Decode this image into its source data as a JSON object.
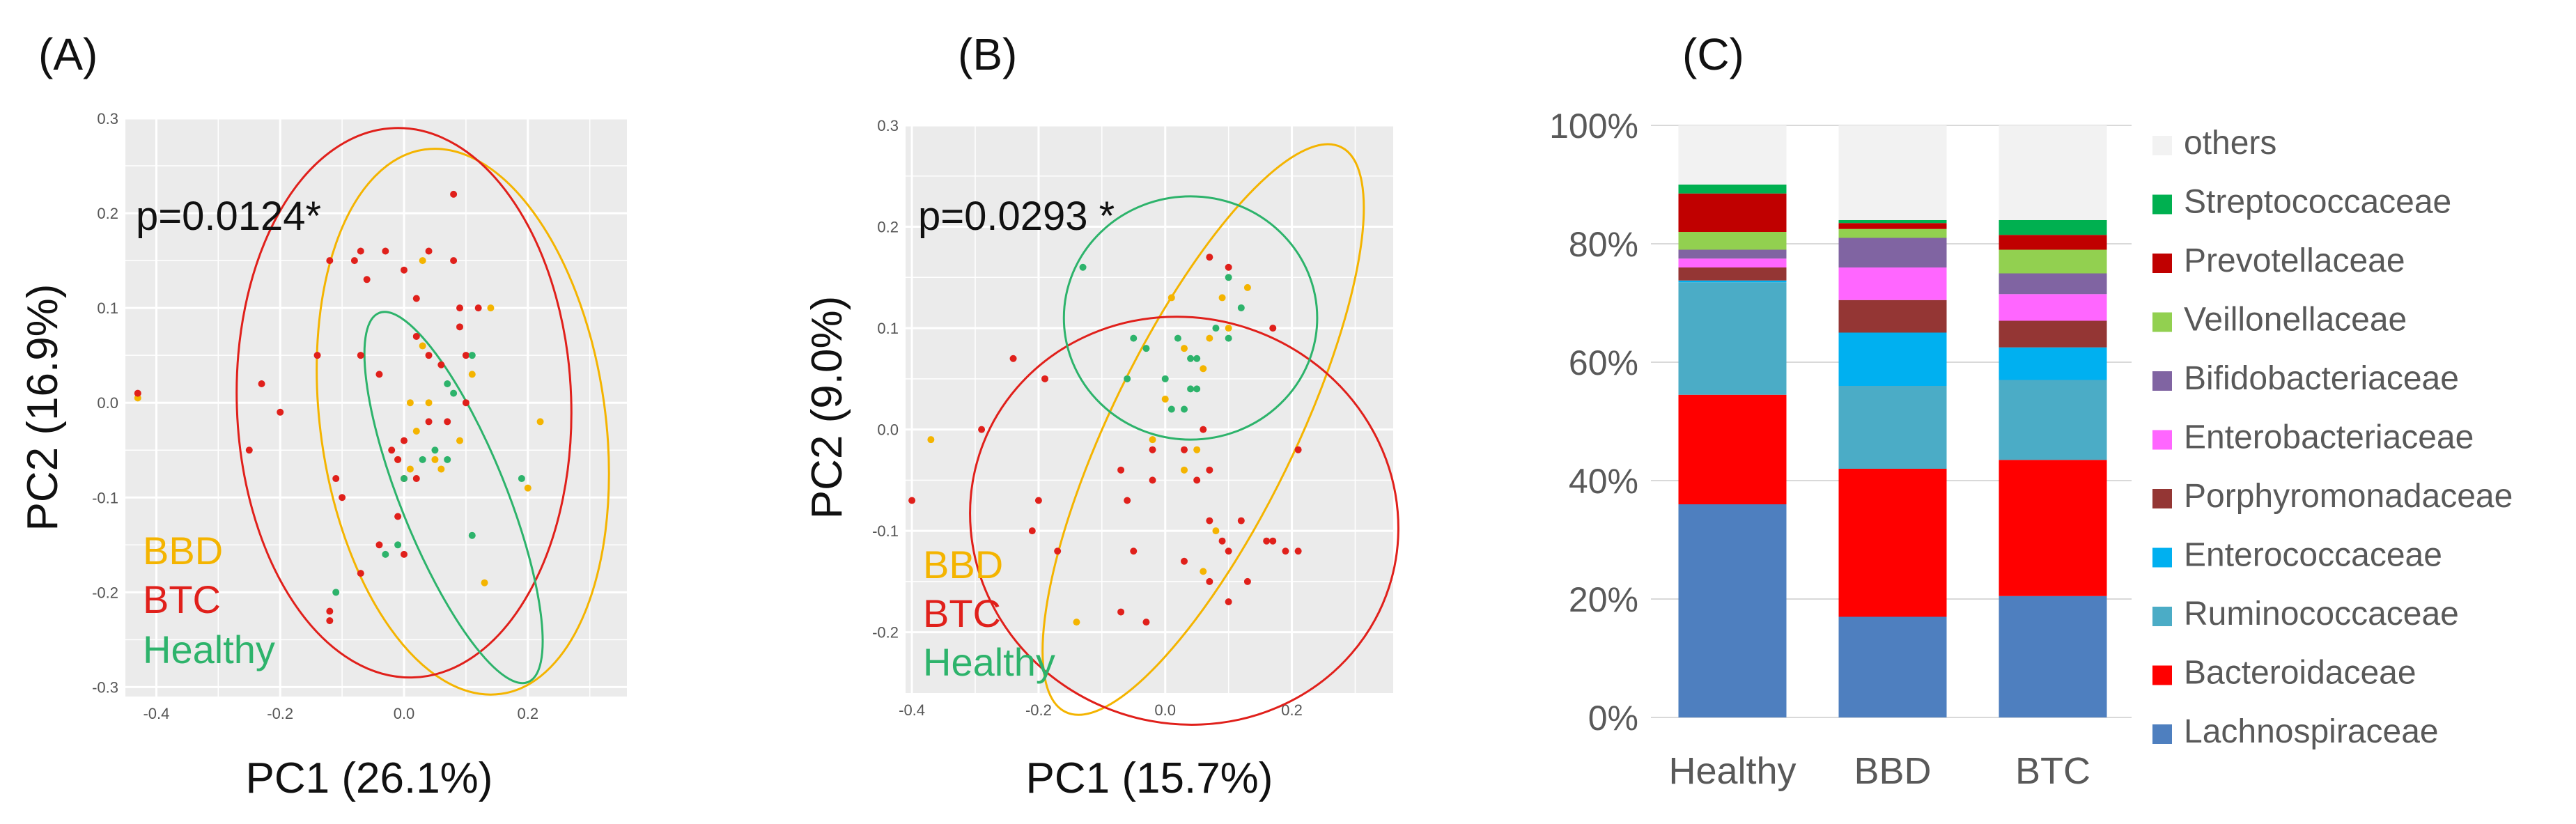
{
  "panels": {
    "a": {
      "label": "(A)",
      "pvalue": "p=0.0124*",
      "xlabel": "PC1 (26.1%)",
      "ylabel": "PC2 (16.9%)",
      "legend": [
        "BBD",
        "BTC",
        "Healthy"
      ]
    },
    "b": {
      "label": "(B)",
      "pvalue": "p=0.0293 *",
      "xlabel": "PC1 (15.7%)",
      "ylabel": "PC2 (9.0%)",
      "legend": [
        "BBD",
        "BTC",
        "Healthy"
      ]
    },
    "c": {
      "label": "(C)"
    }
  },
  "colors": {
    "BBD": "#F4B400",
    "BTC": "#E0201B",
    "Healthy": "#2DB36B",
    "panel_bg": "#EBEBEB",
    "grid": "#FFFFFF"
  },
  "chart_data": [
    {
      "type": "scatter",
      "panel": "A",
      "xlim": [
        -0.45,
        0.36
      ],
      "ylim": [
        -0.31,
        0.3
      ],
      "xticks": [
        "-0.4",
        "-0.2",
        "0.0",
        "0.2"
      ],
      "xtick_values": [
        -0.4,
        -0.2,
        0.0,
        0.2
      ],
      "yticks": [
        "-0.3",
        "-0.2",
        "-0.1",
        "0.0",
        "0.1",
        "0.2",
        "0.3"
      ],
      "ytick_values": [
        -0.3,
        -0.2,
        -0.1,
        0.0,
        0.1,
        0.2,
        0.3
      ],
      "series": [
        {
          "name": "BBD",
          "points": [
            [
              -0.43,
              0.005
            ],
            [
              0.03,
              0.15
            ],
            [
              0.11,
              0.03
            ],
            [
              0.03,
              0.06
            ],
            [
              0.14,
              0.1
            ],
            [
              0.02,
              -0.03
            ],
            [
              -0.01,
              -0.06
            ],
            [
              0.01,
              0.0
            ],
            [
              0.05,
              -0.06
            ],
            [
              0.06,
              -0.07
            ],
            [
              0.09,
              -0.04
            ],
            [
              0.2,
              -0.09
            ],
            [
              0.22,
              -0.02
            ],
            [
              0.13,
              -0.19
            ],
            [
              0.01,
              -0.07
            ],
            [
              0.04,
              0.0
            ]
          ]
        },
        {
          "name": "BTC",
          "points": [
            [
              -0.43,
              0.01
            ],
            [
              -0.25,
              -0.05
            ],
            [
              -0.23,
              0.02
            ],
            [
              -0.2,
              -0.01
            ],
            [
              -0.14,
              0.05
            ],
            [
              -0.12,
              0.15
            ],
            [
              -0.07,
              0.16
            ],
            [
              -0.08,
              0.15
            ],
            [
              -0.06,
              0.13
            ],
            [
              -0.03,
              0.16
            ],
            [
              0.0,
              0.14
            ],
            [
              0.02,
              0.11
            ],
            [
              0.04,
              0.16
            ],
            [
              0.08,
              0.22
            ],
            [
              0.08,
              0.15
            ],
            [
              0.1,
              0.05
            ],
            [
              0.1,
              0.0
            ],
            [
              0.09,
              0.08
            ],
            [
              0.09,
              0.1
            ],
            [
              0.12,
              0.1
            ],
            [
              -0.07,
              0.05
            ],
            [
              -0.04,
              0.03
            ],
            [
              -0.02,
              -0.05
            ],
            [
              -0.01,
              -0.06
            ],
            [
              0.0,
              -0.08
            ],
            [
              0.02,
              -0.08
            ],
            [
              0.04,
              -0.02
            ],
            [
              0.07,
              -0.02
            ],
            [
              0.04,
              0.05
            ],
            [
              0.06,
              0.04
            ],
            [
              -0.1,
              -0.1
            ],
            [
              -0.11,
              -0.08
            ],
            [
              -0.04,
              -0.15
            ],
            [
              -0.01,
              -0.12
            ],
            [
              -0.12,
              -0.23
            ],
            [
              -0.12,
              -0.22
            ],
            [
              0.0,
              -0.16
            ],
            [
              -0.07,
              -0.18
            ],
            [
              0.02,
              0.07
            ],
            [
              0.0,
              -0.04
            ]
          ]
        },
        {
          "name": "Healthy",
          "points": [
            [
              0.07,
              0.02
            ],
            [
              0.08,
              0.01
            ],
            [
              0.11,
              0.05
            ],
            [
              0.05,
              -0.05
            ],
            [
              0.07,
              -0.06
            ],
            [
              0.19,
              -0.08
            ],
            [
              0.11,
              -0.14
            ],
            [
              -0.01,
              -0.15
            ],
            [
              -0.03,
              -0.16
            ],
            [
              -0.11,
              -0.2
            ],
            [
              0.0,
              -0.08
            ],
            [
              0.03,
              -0.06
            ]
          ]
        }
      ],
      "ellipses": [
        {
          "group": "BBD",
          "center": [
            0.095,
            -0.02
          ],
          "radius": [
            0.23,
            0.29
          ],
          "rotation_deg": -8
        },
        {
          "group": "BTC",
          "center": [
            0.0,
            0.0
          ],
          "radius": [
            0.27,
            0.29
          ],
          "rotation_deg": -2
        },
        {
          "group": "Healthy",
          "center": [
            0.08,
            -0.1
          ],
          "radius": [
            0.085,
            0.21
          ],
          "rotation_deg": -22
        }
      ]
    },
    {
      "type": "scatter",
      "panel": "B",
      "xlim": [
        -0.41,
        0.36
      ],
      "ylim": [
        -0.26,
        0.3
      ],
      "xticks": [
        "-0.4",
        "-0.2",
        "0.0",
        "0.2"
      ],
      "xtick_values": [
        -0.4,
        -0.2,
        0.0,
        0.2
      ],
      "yticks": [
        "-0.2",
        "-0.1",
        "0.0",
        "0.1",
        "0.2",
        "0.3"
      ],
      "ytick_values": [
        -0.2,
        -0.1,
        0.0,
        0.1,
        0.2,
        0.3
      ],
      "series": [
        {
          "name": "BBD",
          "points": [
            [
              -0.37,
              -0.01
            ],
            [
              0.01,
              0.13
            ],
            [
              0.13,
              0.14
            ],
            [
              0.09,
              0.13
            ],
            [
              0.1,
              0.1
            ],
            [
              0.06,
              0.06
            ],
            [
              0.07,
              0.09
            ],
            [
              0.03,
              0.08
            ],
            [
              0.0,
              0.03
            ],
            [
              -0.02,
              -0.01
            ],
            [
              0.05,
              -0.02
            ],
            [
              0.03,
              -0.04
            ],
            [
              0.06,
              -0.14
            ],
            [
              -0.14,
              -0.19
            ],
            [
              0.08,
              -0.1
            ]
          ]
        },
        {
          "name": "BTC",
          "points": [
            [
              -0.4,
              -0.07
            ],
            [
              -0.29,
              0.0
            ],
            [
              -0.24,
              0.07
            ],
            [
              -0.19,
              0.05
            ],
            [
              -0.2,
              -0.07
            ],
            [
              -0.21,
              -0.1
            ],
            [
              -0.17,
              -0.12
            ],
            [
              -0.07,
              -0.04
            ],
            [
              -0.06,
              -0.07
            ],
            [
              -0.02,
              -0.05
            ],
            [
              -0.02,
              -0.02
            ],
            [
              0.03,
              -0.02
            ],
            [
              0.05,
              -0.05
            ],
            [
              0.07,
              -0.04
            ],
            [
              0.07,
              -0.09
            ],
            [
              0.12,
              -0.09
            ],
            [
              0.16,
              -0.11
            ],
            [
              0.17,
              -0.11
            ],
            [
              0.19,
              -0.12
            ],
            [
              0.21,
              -0.12
            ],
            [
              0.1,
              -0.12
            ],
            [
              0.09,
              -0.11
            ],
            [
              0.07,
              -0.15
            ],
            [
              0.1,
              -0.17
            ],
            [
              0.13,
              -0.15
            ],
            [
              0.03,
              -0.13
            ],
            [
              -0.03,
              -0.19
            ],
            [
              -0.07,
              -0.18
            ],
            [
              -0.05,
              -0.12
            ],
            [
              0.07,
              0.17
            ],
            [
              0.1,
              0.16
            ],
            [
              0.17,
              0.1
            ],
            [
              0.21,
              -0.02
            ],
            [
              0.06,
              0.0
            ]
          ]
        },
        {
          "name": "Healthy",
          "points": [
            [
              -0.13,
              0.16
            ],
            [
              -0.05,
              0.09
            ],
            [
              -0.03,
              0.08
            ],
            [
              -0.06,
              0.05
            ],
            [
              0.02,
              0.09
            ],
            [
              0.04,
              0.07
            ],
            [
              0.05,
              0.07
            ],
            [
              0.08,
              0.1
            ],
            [
              0.1,
              0.15
            ],
            [
              0.12,
              0.12
            ],
            [
              0.1,
              0.09
            ],
            [
              0.05,
              0.04
            ],
            [
              0.04,
              0.04
            ],
            [
              0.03,
              0.02
            ],
            [
              0.01,
              0.02
            ],
            [
              0.0,
              0.05
            ]
          ]
        }
      ],
      "ellipses": [
        {
          "group": "BBD",
          "center": [
            0.06,
            0.0
          ],
          "radius": [
            0.145,
            0.31
          ],
          "rotation_deg": 26
        },
        {
          "group": "BTC",
          "center": [
            0.03,
            -0.09
          ],
          "radius": [
            0.34,
            0.2
          ],
          "rotation_deg": 18
        },
        {
          "group": "Healthy",
          "center": [
            0.04,
            0.11
          ],
          "radius": [
            0.2,
            0.12
          ],
          "rotation_deg": 0
        }
      ]
    },
    {
      "type": "bar",
      "panel": "C",
      "stacked": true,
      "categories": [
        "Healthy",
        "BBD",
        "BTC"
      ],
      "ylim": [
        0,
        100
      ],
      "yticks": [
        "0%",
        "20%",
        "40%",
        "60%",
        "80%",
        "100%"
      ],
      "ytick_values": [
        0,
        20,
        40,
        60,
        80,
        100
      ],
      "series": [
        {
          "name": "Lachnospiraceae",
          "color": "#4E7FBF",
          "values": [
            36.0,
            17.0,
            20.5
          ]
        },
        {
          "name": "Bacteroidaceae",
          "color": "#FF0000",
          "values": [
            18.5,
            25.0,
            23.0
          ]
        },
        {
          "name": "Ruminococcaceae",
          "color": "#4BACC6",
          "values": [
            19.0,
            14.0,
            13.5
          ]
        },
        {
          "name": "Enterococcaceae",
          "color": "#00B0F0",
          "values": [
            0.3,
            9.0,
            5.5
          ]
        },
        {
          "name": "Porphyromonadaceae",
          "color": "#943634",
          "values": [
            2.2,
            5.5,
            4.5
          ]
        },
        {
          "name": "Enterobacteriaceae",
          "color": "#FF66FF",
          "values": [
            1.5,
            5.5,
            4.5
          ]
        },
        {
          "name": "Bifidobacteriaceae",
          "color": "#8064A2",
          "values": [
            1.5,
            5.0,
            3.5
          ]
        },
        {
          "name": "Veillonellaceae",
          "color": "#92D050",
          "values": [
            3.0,
            1.5,
            4.0
          ]
        },
        {
          "name": "Prevotellaceae",
          "color": "#C00000",
          "values": [
            6.5,
            1.0,
            2.5
          ]
        },
        {
          "name": "Streptococcaceae",
          "color": "#00B050",
          "values": [
            1.5,
            0.5,
            2.5
          ]
        },
        {
          "name": "others",
          "color": "#F2F2F2",
          "values": [
            10.0,
            16.0,
            16.0
          ]
        }
      ],
      "legend_order": [
        "others",
        "Streptococcaceae",
        "Prevotellaceae",
        "Veillonellaceae",
        "Bifidobacteriaceae",
        "Enterobacteriaceae",
        "Porphyromonadaceae",
        "Enterococcaceae",
        "Ruminococcaceae",
        "Bacteroidaceae",
        "Lachnospiraceae"
      ],
      "legend_position": "right"
    }
  ]
}
